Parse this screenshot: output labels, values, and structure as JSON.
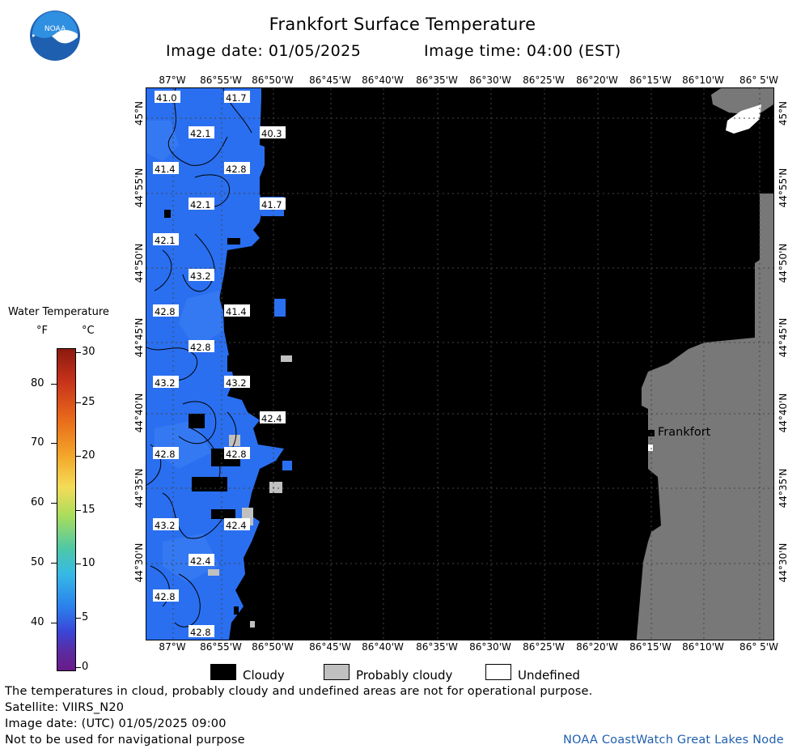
{
  "header": {
    "title": "Frankfort Surface Temperature",
    "image_date": "Image date: 01/05/2025",
    "image_time": "Image time: 04:00 (EST)",
    "logo_text": "NOAA"
  },
  "axes": {
    "longitude_ticks": [
      "87°W",
      "86°55'W",
      "86°50'W",
      "86°45'W",
      "86°40'W",
      "86°35'W",
      "86°30'W",
      "86°25'W",
      "86°20'W",
      "86°15'W",
      "86°10'W",
      "86° 5'W"
    ],
    "latitude_ticks": [
      "45°N",
      "44°55'N",
      "44°50'N",
      "44°45'N",
      "44°40'N",
      "44°35'N",
      "44°30'N"
    ]
  },
  "map": {
    "place_label": "Frankfort",
    "isotherm_labels": [
      "41.0",
      "41.7",
      "42.1",
      "40.3",
      "41.4",
      "42.8",
      "42.1",
      "41.7",
      "42.1",
      "43.2",
      "42.8",
      "41.4",
      "42.8",
      "43.2",
      "43.2",
      "42.4",
      "42.8",
      "42.8",
      "43.2",
      "42.4",
      "42.4",
      "42.8",
      "42.8"
    ],
    "colors": {
      "water": "#2a6ff0",
      "cloudy": "#000000",
      "probably_cloudy": "#c0c0c0",
      "land": "#787878",
      "undefined": "#ffffff"
    }
  },
  "legend": {
    "title": "Water Temperature",
    "unit_f": "°F",
    "unit_c": "°C",
    "f_ticks": [
      "80",
      "70",
      "60",
      "50",
      "40"
    ],
    "c_ticks": [
      "30",
      "25",
      "20",
      "15",
      "10",
      "5",
      "0"
    ]
  },
  "key": {
    "cloudy": "Cloudy",
    "probably_cloudy": "Probably cloudy",
    "undefined": "Undefined"
  },
  "footer": {
    "line1": "The temperatures in cloud, probably cloudy and undefined areas are not for operational purpose.",
    "line2": "Satellite: VIIRS_N20",
    "line3": "Image date: (UTC) 01/05/2025  09:00",
    "line4": "Not to be used for navigational purpose",
    "credit": "NOAA CoastWatch Great Lakes Node"
  }
}
